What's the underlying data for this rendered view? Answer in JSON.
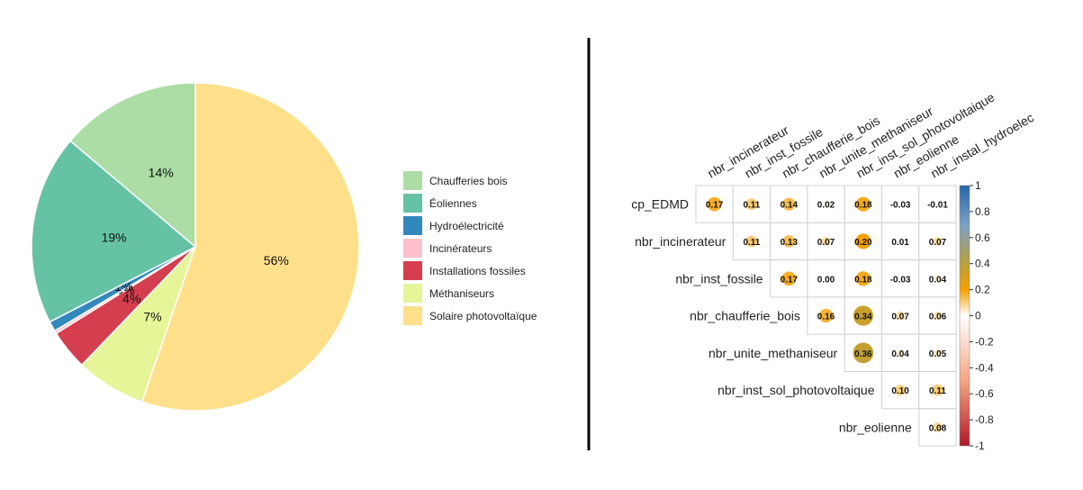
{
  "chart_data": [
    {
      "type": "pie",
      "start": "top, clockwise",
      "categories": [
        "Solaire photovoltaïque",
        "Méthaniseurs",
        "Installations fossiles",
        "Incinérateurs",
        "Hydroélectricité",
        "Éoliennes",
        "Chaufferies bois"
      ],
      "values": [
        56,
        7,
        4,
        0.3,
        1,
        19,
        14
      ],
      "slice_labels": [
        "56%",
        "7%",
        "4%",
        "0%",
        "1%",
        "19%",
        "14%"
      ],
      "colors": [
        "#FEE08B",
        "#E6F598",
        "#D53E4F",
        "#FDBFC9",
        "#3288BD",
        "#66C2A5",
        "#ABDDA4"
      ],
      "legend": {
        "position": "right",
        "entries": [
          "Chaufferies bois",
          "Éoliennes",
          "Hydroélectricité",
          "Incinérateurs",
          "Installations fossiles",
          "Méthaniseurs",
          "Solaire photovoltaïque"
        ],
        "colors": [
          "#ABDDA4",
          "#66C2A5",
          "#3288BD",
          "#FDBFC9",
          "#D53E4F",
          "#E6F598",
          "#FEE08B"
        ]
      }
    },
    {
      "type": "heatmap",
      "style": "upper-triangle correlation matrix, circle size and color by coefficient",
      "columns": [
        "nbr_incinerateur",
        "nbr_inst_fossile",
        "nbr_chaufferie_bois",
        "nbr_unite_methaniseur",
        "nbr_inst_sol_photovoltaique",
        "nbr_eolienne",
        "nbr_instal_hydroelec"
      ],
      "rows": [
        "cp_EDMD",
        "nbr_incinerateur",
        "nbr_inst_fossile",
        "nbr_chaufferie_bois",
        "nbr_unite_methaniseur",
        "nbr_inst_sol_photovoltaique",
        "nbr_eolienne"
      ],
      "values": [
        [
          0.17,
          0.11,
          0.14,
          0.02,
          0.18,
          -0.03,
          -0.01
        ],
        [
          null,
          0.11,
          0.13,
          0.07,
          0.2,
          0.01,
          0.07
        ],
        [
          null,
          null,
          0.17,
          0.0,
          0.18,
          -0.03,
          0.04
        ],
        [
          null,
          null,
          null,
          0.16,
          0.34,
          0.07,
          0.06
        ],
        [
          null,
          null,
          null,
          null,
          0.36,
          0.04,
          0.05
        ],
        [
          null,
          null,
          null,
          null,
          null,
          0.1,
          0.11
        ],
        [
          null,
          null,
          null,
          null,
          null,
          null,
          0.08
        ]
      ],
      "value_labels": [
        [
          "0.17",
          "0.11",
          "0.14",
          "0.02",
          "0.18",
          "-0.03",
          "-0.01"
        ],
        [
          "",
          "0.11",
          "0.13",
          "0.07",
          "0.20",
          "0.01",
          "0.07"
        ],
        [
          "",
          "",
          "0.17",
          "0.00",
          "0.18",
          "-0.03",
          "0.04"
        ],
        [
          "",
          "",
          "",
          "0.16",
          "0.34",
          "0.07",
          "0.06"
        ],
        [
          "",
          "",
          "",
          "",
          "0.36",
          "0.04",
          "0.05"
        ],
        [
          "",
          "",
          "",
          "",
          "",
          "0.10",
          "0.11"
        ],
        [
          "",
          "",
          "",
          "",
          "",
          "",
          "0.08"
        ]
      ],
      "colorbar": {
        "range": [
          -1,
          1
        ],
        "ticks": [
          1,
          0.8,
          0.6,
          0.4,
          0.2,
          0,
          -0.2,
          -0.4,
          -0.6,
          -0.8,
          -1
        ],
        "tick_labels": [
          "1",
          "0.8",
          "0.6",
          "0.4",
          "0.2",
          "0",
          "-0.2",
          "-0.4",
          "-0.6",
          "-0.8",
          "-1"
        ],
        "gradient_stops": [
          {
            "value": -1,
            "color": "#B2182B"
          },
          {
            "value": -0.5,
            "color": "#F4A582"
          },
          {
            "value": 0,
            "color": "#FFFFFF"
          },
          {
            "value": 0.2,
            "color": "#F5A000"
          },
          {
            "value": 0.4,
            "color": "#B8A040"
          },
          {
            "value": 0.7,
            "color": "#7CA0C4"
          },
          {
            "value": 1,
            "color": "#2166AC"
          }
        ]
      }
    }
  ]
}
